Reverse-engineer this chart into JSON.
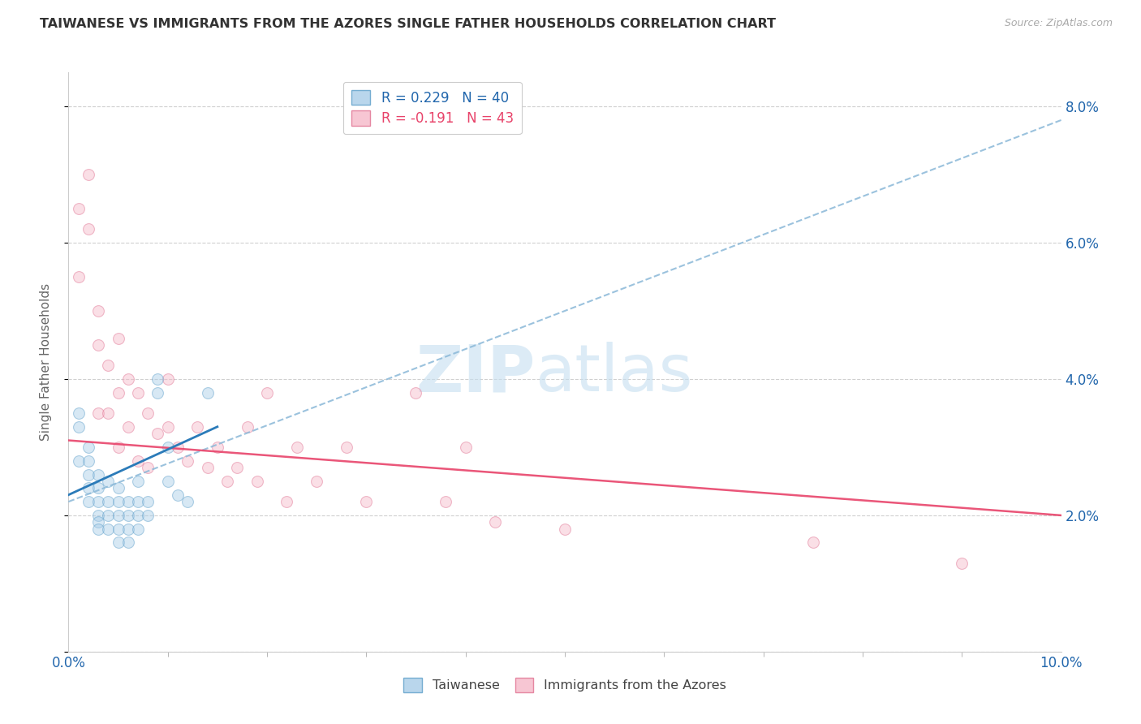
{
  "title": "TAIWANESE VS IMMIGRANTS FROM THE AZORES SINGLE FATHER HOUSEHOLDS CORRELATION CHART",
  "source": "Source: ZipAtlas.com",
  "ylabel": "Single Father Households",
  "xlim": [
    0,
    0.1
  ],
  "ylim": [
    0,
    0.085
  ],
  "xticks_major": [
    0.0,
    0.1
  ],
  "xticks_minor": [
    0.01,
    0.02,
    0.03,
    0.04,
    0.05,
    0.06,
    0.07,
    0.08,
    0.09
  ],
  "yticks": [
    0.0,
    0.02,
    0.04,
    0.06,
    0.08
  ],
  "ytick_labels": [
    "",
    "2.0%",
    "4.0%",
    "6.0%",
    "8.0%"
  ],
  "xtick_major_labels": [
    "0.0%",
    "10.0%"
  ],
  "blue_color": "#a8cce8",
  "blue_edge_color": "#5b9ec9",
  "pink_color": "#f5b8c8",
  "pink_edge_color": "#e07090",
  "line_blue_color": "#2b7bb9",
  "line_pink_color": "#e8436a",
  "legend_blue_R": "R = 0.229",
  "legend_blue_N": "N = 40",
  "legend_pink_R": "R = -0.191",
  "legend_pink_N": "N = 43",
  "legend_label_blue": "Taiwanese",
  "legend_label_pink": "Immigrants from the Azores",
  "watermark_zip": "ZIP",
  "watermark_atlas": "atlas",
  "taiwanese_x": [
    0.001,
    0.001,
    0.001,
    0.002,
    0.002,
    0.002,
    0.002,
    0.002,
    0.003,
    0.003,
    0.003,
    0.003,
    0.003,
    0.003,
    0.004,
    0.004,
    0.004,
    0.004,
    0.005,
    0.005,
    0.005,
    0.005,
    0.005,
    0.006,
    0.006,
    0.006,
    0.006,
    0.007,
    0.007,
    0.007,
    0.007,
    0.008,
    0.008,
    0.009,
    0.009,
    0.01,
    0.01,
    0.011,
    0.012,
    0.014
  ],
  "taiwanese_y": [
    0.035,
    0.033,
    0.028,
    0.03,
    0.028,
    0.026,
    0.024,
    0.022,
    0.026,
    0.024,
    0.022,
    0.02,
    0.019,
    0.018,
    0.025,
    0.022,
    0.02,
    0.018,
    0.024,
    0.022,
    0.02,
    0.018,
    0.016,
    0.022,
    0.02,
    0.018,
    0.016,
    0.025,
    0.022,
    0.02,
    0.018,
    0.022,
    0.02,
    0.04,
    0.038,
    0.03,
    0.025,
    0.023,
    0.022,
    0.038
  ],
  "azores_x": [
    0.001,
    0.001,
    0.002,
    0.002,
    0.003,
    0.003,
    0.003,
    0.004,
    0.004,
    0.005,
    0.005,
    0.005,
    0.006,
    0.006,
    0.007,
    0.007,
    0.008,
    0.008,
    0.009,
    0.01,
    0.01,
    0.011,
    0.012,
    0.013,
    0.014,
    0.015,
    0.016,
    0.017,
    0.018,
    0.019,
    0.02,
    0.022,
    0.023,
    0.025,
    0.028,
    0.03,
    0.035,
    0.038,
    0.04,
    0.043,
    0.05,
    0.075,
    0.09
  ],
  "azores_y": [
    0.065,
    0.055,
    0.07,
    0.062,
    0.05,
    0.045,
    0.035,
    0.042,
    0.035,
    0.046,
    0.038,
    0.03,
    0.04,
    0.033,
    0.038,
    0.028,
    0.035,
    0.027,
    0.032,
    0.04,
    0.033,
    0.03,
    0.028,
    0.033,
    0.027,
    0.03,
    0.025,
    0.027,
    0.033,
    0.025,
    0.038,
    0.022,
    0.03,
    0.025,
    0.03,
    0.022,
    0.038,
    0.022,
    0.03,
    0.019,
    0.018,
    0.016,
    0.013
  ],
  "blue_trend_x0": 0.0,
  "blue_trend_y0": 0.022,
  "blue_trend_x1": 0.1,
  "blue_trend_y1": 0.078,
  "pink_trend_x0": 0.0,
  "pink_trend_y0": 0.031,
  "pink_trend_x1": 0.1,
  "pink_trend_y1": 0.02,
  "grid_color": "#d0d0d0",
  "background_color": "#ffffff",
  "marker_size": 100,
  "marker_alpha": 0.45
}
